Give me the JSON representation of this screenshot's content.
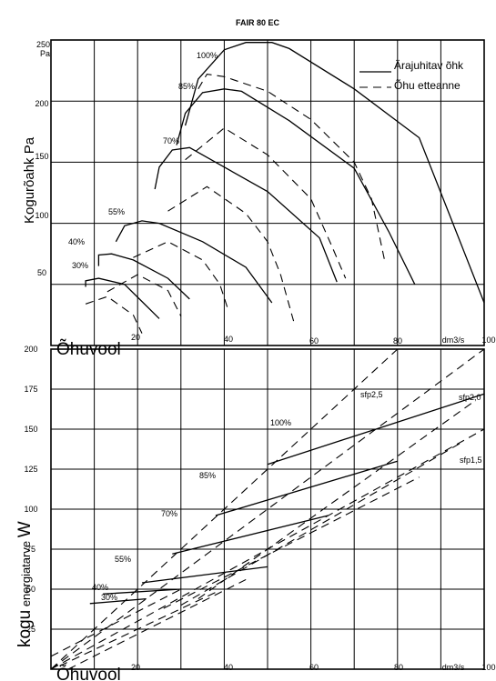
{
  "chart_data": [
    {
      "type": "line",
      "title": "FAIR 80 EC",
      "ylabel": "Kogurõahk",
      "ylabel_unit": "Pa",
      "y_unit_tick": "Pa",
      "xlabel": "Õhuvool",
      "x_unit_tick": "dm3/s",
      "xlim": [
        0,
        100
      ],
      "ylim": [
        0,
        250
      ],
      "x_ticks": [
        20,
        40,
        60,
        80,
        100
      ],
      "y_ticks": [
        50,
        100,
        150,
        200,
        250
      ],
      "legend": [
        {
          "label": "Ärajuhitav õhk",
          "style": "solid"
        },
        {
          "label": "Õhu etteanne",
          "style": "dashed"
        }
      ],
      "series": [
        {
          "name": "100%",
          "style": "solid",
          "points": [
            [
              31,
              180
            ],
            [
              34,
              218
            ],
            [
              40,
              242
            ],
            [
              45,
              248
            ],
            [
              51,
              248
            ],
            [
              55,
              243
            ],
            [
              70,
              210
            ],
            [
              85,
              170
            ],
            [
              100,
              35
            ]
          ]
        },
        {
          "name": "85%",
          "style": "solid",
          "points": [
            [
              29,
              164
            ],
            [
              31,
              190
            ],
            [
              35,
              207
            ],
            [
              40,
              210
            ],
            [
              44,
              208
            ],
            [
              55,
              184
            ],
            [
              70,
              145
            ],
            [
              78,
              93
            ],
            [
              84,
              50
            ]
          ]
        },
        {
          "name": "70%",
          "style": "solid",
          "points": [
            [
              24,
              128
            ],
            [
              25,
              146
            ],
            [
              28,
              160
            ],
            [
              32,
              162
            ],
            [
              38,
              150
            ],
            [
              50,
              126
            ],
            [
              62,
              88
            ],
            [
              66,
              52
            ]
          ]
        },
        {
          "name": "55%",
          "style": "solid",
          "points": [
            [
              15,
              85
            ],
            [
              17,
              98
            ],
            [
              21,
              102
            ],
            [
              25,
              100
            ],
            [
              35,
              85
            ],
            [
              45,
              64
            ],
            [
              51,
              35
            ]
          ]
        },
        {
          "name": "40%",
          "style": "solid",
          "points": [
            [
              11,
              65
            ],
            [
              11,
              74
            ],
            [
              14,
              75
            ],
            [
              19,
              70
            ],
            [
              27,
              55
            ],
            [
              32,
              38
            ]
          ]
        },
        {
          "name": "30%",
          "style": "solid",
          "points": [
            [
              8,
              48
            ],
            [
              8,
              53
            ],
            [
              11,
              55
            ],
            [
              17,
              50
            ],
            [
              21,
              36
            ],
            [
              25,
              22
            ]
          ]
        },
        {
          "name": "100%",
          "style": "dashed",
          "points": [
            [
              34,
              210
            ],
            [
              36,
              222
            ],
            [
              40,
              220
            ],
            [
              50,
              208
            ],
            [
              60,
              185
            ],
            [
              70,
              150
            ],
            [
              74,
              120
            ],
            [
              77,
              70
            ]
          ]
        },
        {
          "name": "85%",
          "style": "dashed",
          "points": [
            [
              31,
              152
            ],
            [
              40,
              178
            ],
            [
              50,
              156
            ],
            [
              60,
              120
            ],
            [
              65,
              80
            ],
            [
              68,
              55
            ]
          ]
        },
        {
          "name": "70%",
          "style": "dashed",
          "points": [
            [
              27,
              110
            ],
            [
              36,
              130
            ],
            [
              45,
              108
            ],
            [
              50,
              85
            ],
            [
              53,
              58
            ],
            [
              56,
              20
            ]
          ]
        },
        {
          "name": "55%",
          "style": "dashed",
          "points": [
            [
              19,
              72
            ],
            [
              27,
              85
            ],
            [
              35,
              70
            ],
            [
              39,
              50
            ],
            [
              41,
              28
            ]
          ]
        },
        {
          "name": "40%",
          "style": "dashed",
          "points": [
            [
              13,
              44
            ],
            [
              20,
              58
            ],
            [
              27,
              45
            ],
            [
              30,
              24
            ]
          ]
        },
        {
          "name": "30%",
          "style": "dashed",
          "points": [
            [
              8,
              34
            ],
            [
              13,
              40
            ],
            [
              19,
              25
            ],
            [
              21,
              10
            ]
          ]
        }
      ]
    },
    {
      "type": "line",
      "ylabel": "kogu",
      "ylabel_small": "energiatarve",
      "ylabel_unit": "W",
      "xlabel": "Õhuvool",
      "x_unit_tick": "dm3/s",
      "xlim": [
        0,
        100
      ],
      "ylim": [
        0,
        200
      ],
      "x_ticks": [
        20,
        40,
        60,
        80,
        100
      ],
      "y_ticks": [
        25,
        50,
        75,
        100,
        125,
        150,
        175,
        200
      ],
      "series": [
        {
          "name": "100%",
          "style": "solid",
          "points": [
            [
              50,
              128
            ],
            [
              100,
              172
            ]
          ]
        },
        {
          "name": "85%",
          "style": "solid",
          "points": [
            [
              38,
              96
            ],
            [
              80,
              130
            ]
          ]
        },
        {
          "name": "70%",
          "style": "solid",
          "points": [
            [
              28,
              72
            ],
            [
              64,
              96
            ]
          ]
        },
        {
          "name": "55%",
          "style": "solid",
          "points": [
            [
              21,
              54
            ],
            [
              50,
              64
            ]
          ]
        },
        {
          "name": "40%",
          "style": "solid",
          "points": [
            [
              12,
              47
            ],
            [
              30,
              50
            ]
          ]
        },
        {
          "name": "30%",
          "style": "solid",
          "points": [
            [
              9,
              41
            ],
            [
              22,
              44
            ]
          ]
        },
        {
          "name": "sfp2,5",
          "style": "dashed",
          "points": [
            [
              0,
              0
            ],
            [
              80,
              200
            ]
          ]
        },
        {
          "name": "sfp2,0",
          "style": "dashed",
          "points": [
            [
              0,
              0
            ],
            [
              100,
              200
            ]
          ]
        },
        {
          "name": "sfp1,5",
          "style": "dashed",
          "points": [
            [
              0,
              0
            ],
            [
              100,
              150
            ]
          ]
        }
      ],
      "annotations": [
        "100%",
        "85%",
        "70%",
        "55%",
        "40%",
        "30%",
        "sfp2,5",
        "sfp2,0",
        "sfp1,5"
      ]
    }
  ]
}
